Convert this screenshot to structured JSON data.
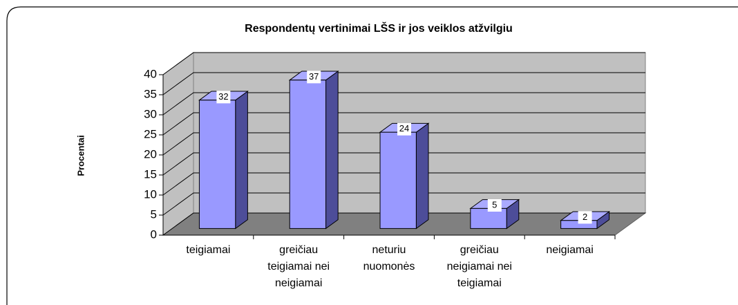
{
  "chart_data": {
    "type": "bar3d",
    "title": "Respondentų vertinimai LŠS ir jos veiklos atžvilgiu",
    "y_label": "Procentai",
    "categories": [
      "teigiamai",
      "greičiau teigiamai nei neigiamai",
      "neturiu nuomonės",
      "greičiau neigiamai nei teigiamai",
      "neigiamai"
    ],
    "values": [
      32,
      37,
      24,
      5,
      2
    ],
    "color": "#9999ff",
    "ylim": [
      0,
      40
    ],
    "yticks": [
      0,
      5,
      10,
      15,
      20,
      25,
      30,
      35,
      40
    ],
    "grid": true
  }
}
